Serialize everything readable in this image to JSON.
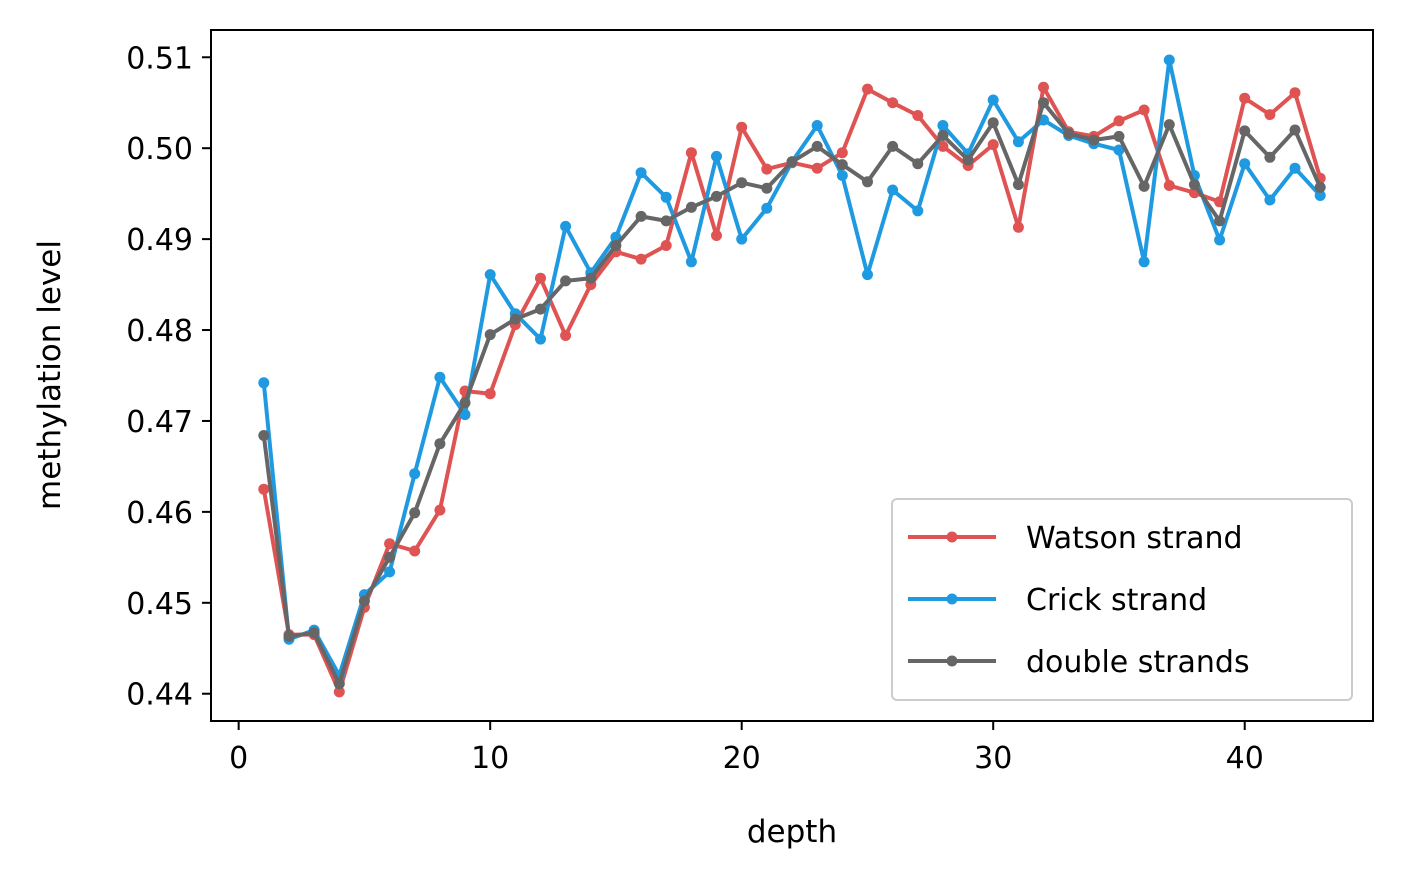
{
  "chart_data": {
    "type": "line",
    "title": "",
    "xlabel": "depth",
    "ylabel": "methylation level",
    "xlim": [
      -1.1,
      45.1
    ],
    "ylim": [
      0.437,
      0.513
    ],
    "xticks": [
      0,
      10,
      20,
      30,
      40
    ],
    "yticks": [
      0.44,
      0.45,
      0.46,
      0.47,
      0.48,
      0.49,
      0.5,
      0.51
    ],
    "xtick_labels": [
      "0",
      "10",
      "20",
      "30",
      "40"
    ],
    "ytick_labels": [
      "0.44",
      "0.45",
      "0.46",
      "0.47",
      "0.48",
      "0.49",
      "0.50",
      "0.51"
    ],
    "grid": false,
    "legend_position": "lower-right",
    "x": [
      1,
      2,
      3,
      4,
      5,
      6,
      7,
      8,
      9,
      10,
      11,
      12,
      13,
      14,
      15,
      16,
      17,
      18,
      19,
      20,
      21,
      22,
      23,
      24,
      25,
      26,
      27,
      28,
      29,
      30,
      31,
      32,
      33,
      34,
      35,
      36,
      37,
      38,
      39,
      40,
      41,
      42,
      43
    ],
    "series": [
      {
        "name": "Watson strand",
        "color": "#e05353",
        "values": [
          0.4625,
          0.4465,
          0.4465,
          0.4402,
          0.4495,
          0.4565,
          0.4557,
          0.4602,
          0.4733,
          0.473,
          0.4806,
          0.4857,
          0.4794,
          0.485,
          0.4886,
          0.4878,
          0.4893,
          0.4995,
          0.4904,
          0.5023,
          0.4977,
          0.4984,
          0.4978,
          0.4995,
          0.5065,
          0.505,
          0.5036,
          0.5002,
          0.4981,
          0.5004,
          0.4913,
          0.5067,
          0.5018,
          0.5013,
          0.503,
          0.5042,
          0.4959,
          0.4951,
          0.4941,
          0.5055,
          0.5037,
          0.5061,
          0.4967
        ]
      },
      {
        "name": "Crick strand",
        "color": "#1f9ae0",
        "values": [
          0.4742,
          0.446,
          0.447,
          0.442,
          0.4509,
          0.4534,
          0.4642,
          0.4748,
          0.4707,
          0.4861,
          0.4818,
          0.479,
          0.4914,
          0.4863,
          0.4902,
          0.4973,
          0.4946,
          0.4875,
          0.4991,
          0.49,
          0.4934,
          0.4985,
          0.5025,
          0.497,
          0.4861,
          0.4954,
          0.4931,
          0.5025,
          0.4994,
          0.5053,
          0.5007,
          0.5031,
          0.5014,
          0.5005,
          0.4998,
          0.4875,
          0.5097,
          0.497,
          0.4899,
          0.4983,
          0.4943,
          0.4978,
          0.4948
        ]
      },
      {
        "name": "double strands",
        "color": "#666666",
        "values": [
          0.4684,
          0.4463,
          0.4467,
          0.4411,
          0.4502,
          0.455,
          0.4599,
          0.4675,
          0.472,
          0.4795,
          0.4812,
          0.4823,
          0.4854,
          0.4857,
          0.4893,
          0.4925,
          0.492,
          0.4935,
          0.4947,
          0.4962,
          0.4956,
          0.4985,
          0.5002,
          0.4982,
          0.4963,
          0.5002,
          0.4983,
          0.5014,
          0.4987,
          0.5028,
          0.496,
          0.505,
          0.5016,
          0.5009,
          0.5013,
          0.4958,
          0.5026,
          0.496,
          0.492,
          0.5019,
          0.499,
          0.502,
          0.4957
        ]
      }
    ]
  }
}
